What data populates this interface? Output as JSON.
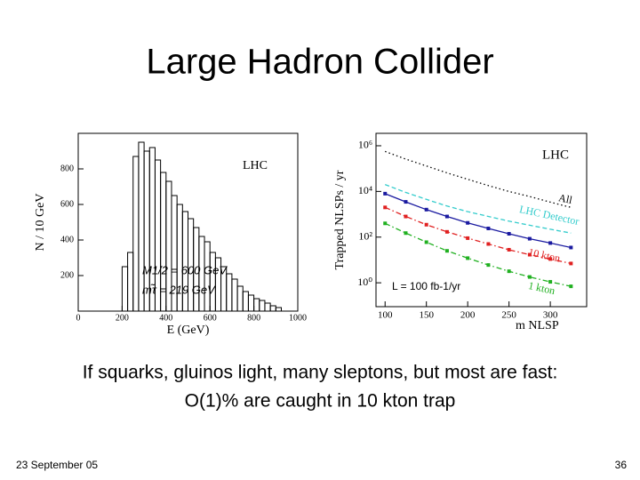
{
  "slide": {
    "title": "Large Hadron Collider",
    "caption": [
      "If squarks, gluinos light, many sleptons, but most are fast:",
      "O(1)% are caught in 10 kton trap"
    ],
    "footer_date": "23 September 05",
    "page_number": "36"
  },
  "chart_data": [
    {
      "type": "histogram",
      "xlabel": "E (GeV)",
      "ylabel": "N / 10 GeV",
      "annotations": [
        "LHC",
        "M1/2 = 600 GeV",
        "mτ̃ = 219 GeV"
      ],
      "bins": [
        200,
        225,
        250,
        275,
        300,
        325,
        350,
        375,
        400,
        425,
        450,
        475,
        500,
        525,
        550,
        575,
        600,
        625,
        650,
        675,
        700,
        725,
        750,
        775,
        800,
        825,
        850,
        875,
        900,
        925
      ],
      "values": [
        250,
        330,
        870,
        950,
        900,
        920,
        850,
        780,
        730,
        650,
        600,
        560,
        520,
        470,
        420,
        390,
        330,
        300,
        250,
        210,
        180,
        140,
        110,
        90,
        70,
        60,
        45,
        30,
        20
      ],
      "color": "#000000",
      "xlim": [
        0,
        1000
      ],
      "xticks": [
        0,
        200,
        400,
        600,
        800,
        1000
      ],
      "ylim": [
        0,
        1000
      ],
      "yticks": [
        200,
        400,
        600,
        800
      ]
    },
    {
      "type": "line",
      "xlabel": "m NLSP",
      "ylabel": "Trapped NLSPs / yr",
      "ylog": true,
      "annotations": [
        "LHC",
        "L = 100 fb-1/yr"
      ],
      "x": [
        100,
        125,
        150,
        175,
        200,
        225,
        250,
        275,
        300,
        325
      ],
      "series": [
        {
          "name": "All",
          "color": "#000000",
          "dash": "dotted",
          "markers": false,
          "values": [
            560000,
            260000,
            130000,
            65000,
            34000,
            18000,
            10000,
            6000,
            3400,
            2000
          ]
        },
        {
          "name": "LHC Detector",
          "color": "#33cccc",
          "dash": "dashed",
          "markers": false,
          "values": [
            20000,
            9000,
            4500,
            2300,
            1300,
            800,
            500,
            330,
            220,
            150
          ]
        },
        {
          "color": "#1a1aa0",
          "dash": "solid",
          "markers": true,
          "values": [
            8000,
            3500,
            1600,
            800,
            420,
            240,
            140,
            85,
            55,
            35
          ]
        },
        {
          "name": "10 kton",
          "color": "#e02020",
          "dash": "dash-dot",
          "markers": true,
          "values": [
            2000,
            800,
            350,
            170,
            90,
            50,
            28,
            17,
            11,
            7
          ]
        },
        {
          "name": "1 kton",
          "color": "#20b020",
          "dash": "dash-dot",
          "markers": true,
          "values": [
            400,
            150,
            60,
            25,
            12,
            6,
            3.2,
            1.8,
            1.1,
            0.7
          ]
        }
      ],
      "xlim": [
        89,
        344
      ],
      "xticks": [
        100,
        150,
        200,
        250,
        300
      ],
      "ylim": [
        0.09,
        3500000
      ],
      "yticks": [
        {
          "value": 1,
          "label": "10⁰"
        },
        {
          "value": 100,
          "label": "10²"
        },
        {
          "value": 10000,
          "label": "10⁴"
        },
        {
          "value": 1000000,
          "label": "10⁶"
        }
      ]
    }
  ]
}
